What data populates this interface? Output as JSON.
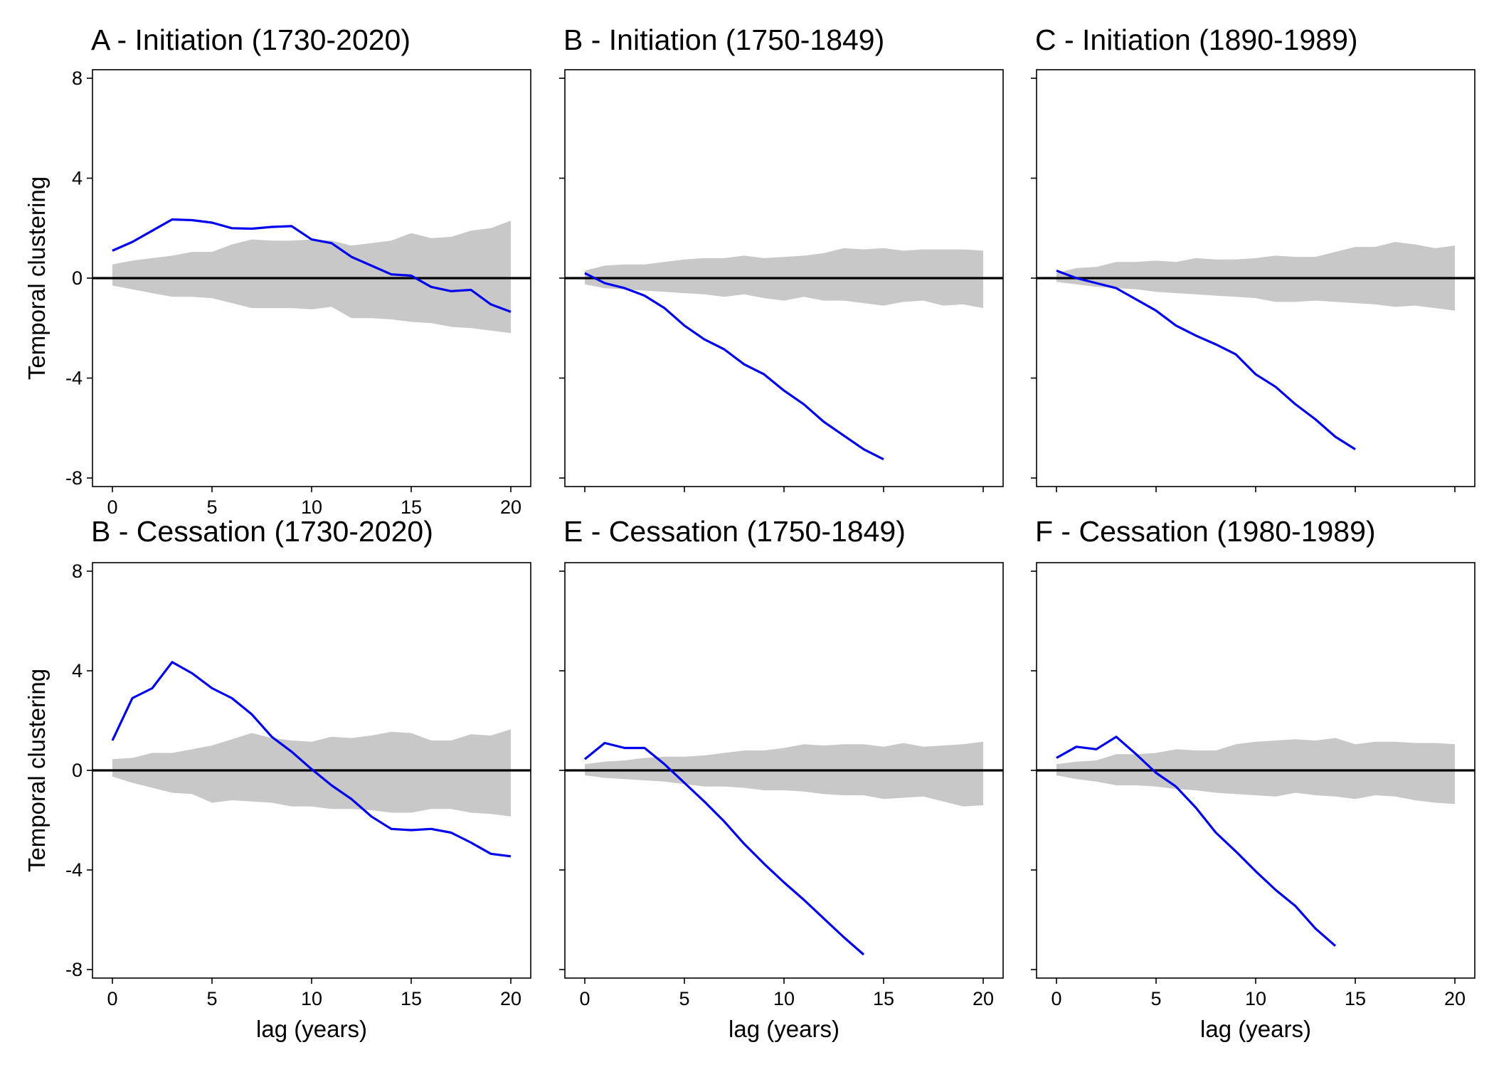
{
  "colors": {
    "line": "#0000ee",
    "band": "#c8c8c8",
    "zero_line": "#000000",
    "frame": "#000000"
  },
  "chart_data": [
    {
      "type": "area",
      "title": "A - Initiation (1730-2020)",
      "xlabel": "",
      "ylabel": "Temporal clustering",
      "xlim": [
        0,
        20
      ],
      "ylim": [
        -8,
        8
      ],
      "xticks": [
        "0",
        "5",
        "10",
        "15",
        "20"
      ],
      "yticks": [
        "-8",
        "-4",
        "0",
        "4",
        "8"
      ],
      "x": [
        0,
        1,
        2,
        3,
        4,
        5,
        6,
        7,
        8,
        9,
        10,
        11,
        12,
        13,
        14,
        15,
        16,
        17,
        18,
        19,
        20
      ],
      "band_upper": [
        0.55,
        0.7,
        0.8,
        0.9,
        1.05,
        1.05,
        1.35,
        1.55,
        1.5,
        1.5,
        1.55,
        1.5,
        1.3,
        1.4,
        1.5,
        1.8,
        1.6,
        1.65,
        1.9,
        2.0,
        2.3
      ],
      "band_lower": [
        -0.3,
        -0.45,
        -0.6,
        -0.75,
        -0.75,
        -0.8,
        -1.0,
        -1.2,
        -1.2,
        -1.2,
        -1.25,
        -1.15,
        -1.6,
        -1.6,
        -1.65,
        -1.75,
        -1.8,
        -1.95,
        -2.0,
        -2.1,
        -2.2
      ],
      "line": [
        1.1,
        1.45,
        1.9,
        2.35,
        2.32,
        2.22,
        2.0,
        1.98,
        2.05,
        2.08,
        1.55,
        1.4,
        0.85,
        0.5,
        0.15,
        0.1,
        -0.35,
        -0.52,
        -0.47,
        -1.05,
        -1.35
      ]
    },
    {
      "type": "area",
      "title": "B - Initiation (1750-1849)",
      "xlabel": "",
      "ylabel": "",
      "xlim": [
        0,
        20
      ],
      "ylim": [
        -8,
        8
      ],
      "xticks": [],
      "yticks": [],
      "x": [
        0,
        1,
        2,
        3,
        4,
        5,
        6,
        7,
        8,
        9,
        10,
        11,
        12,
        13,
        14,
        15,
        16,
        17,
        18,
        19,
        20
      ],
      "band_upper": [
        0.3,
        0.5,
        0.55,
        0.55,
        0.65,
        0.75,
        0.8,
        0.8,
        0.9,
        0.8,
        0.85,
        0.9,
        1.0,
        1.2,
        1.15,
        1.2,
        1.1,
        1.15,
        1.15,
        1.15,
        1.1
      ],
      "band_lower": [
        -0.25,
        -0.4,
        -0.45,
        -0.5,
        -0.55,
        -0.6,
        -0.65,
        -0.75,
        -0.65,
        -0.8,
        -0.9,
        -0.75,
        -0.9,
        -0.9,
        -1.0,
        -1.1,
        -0.95,
        -0.9,
        -1.1,
        -1.05,
        -1.2
      ],
      "line": [
        0.2,
        -0.2,
        -0.4,
        -0.7,
        -1.2,
        -1.9,
        -2.45,
        -2.85,
        -3.45,
        -3.85,
        -4.5,
        -5.05,
        -5.75,
        -6.3,
        -6.85,
        -7.25,
        null,
        null,
        null,
        null,
        null
      ]
    },
    {
      "type": "area",
      "title": "C - Initiation (1890-1989)",
      "xlabel": "",
      "ylabel": "",
      "xlim": [
        0,
        20
      ],
      "ylim": [
        -8,
        8
      ],
      "xticks": [],
      "yticks": [],
      "x": [
        0,
        1,
        2,
        3,
        4,
        5,
        6,
        7,
        8,
        9,
        10,
        11,
        12,
        13,
        14,
        15,
        16,
        17,
        18,
        19,
        20
      ],
      "band_upper": [
        0.2,
        0.4,
        0.45,
        0.65,
        0.65,
        0.7,
        0.65,
        0.8,
        0.75,
        0.75,
        0.8,
        0.9,
        0.85,
        0.85,
        1.05,
        1.25,
        1.25,
        1.45,
        1.35,
        1.2,
        1.3
      ],
      "band_lower": [
        -0.15,
        -0.25,
        -0.35,
        -0.4,
        -0.45,
        -0.55,
        -0.6,
        -0.65,
        -0.7,
        -0.75,
        -0.8,
        -0.95,
        -0.95,
        -0.9,
        -0.95,
        -1.0,
        -1.05,
        -1.15,
        -1.1,
        -1.2,
        -1.3
      ],
      "line": [
        0.3,
        0.0,
        -0.2,
        -0.4,
        -0.85,
        -1.3,
        -1.9,
        -2.3,
        -2.65,
        -3.05,
        -3.85,
        -4.35,
        -5.05,
        -5.65,
        -6.35,
        -6.85,
        null,
        null,
        null,
        null,
        null
      ]
    },
    {
      "type": "area",
      "title": "B - Cessation (1730-2020)",
      "xlabel": "lag (years)",
      "ylabel": "Temporal clustering",
      "xlim": [
        0,
        20
      ],
      "ylim": [
        -8,
        8
      ],
      "xticks": [
        "0",
        "5",
        "10",
        "15",
        "20"
      ],
      "yticks": [
        "-8",
        "-4",
        "0",
        "4",
        "8"
      ],
      "x": [
        0,
        1,
        2,
        3,
        4,
        5,
        6,
        7,
        8,
        9,
        10,
        11,
        12,
        13,
        14,
        15,
        16,
        17,
        18,
        19,
        20
      ],
      "band_upper": [
        0.45,
        0.5,
        0.7,
        0.7,
        0.85,
        1.0,
        1.25,
        1.5,
        1.3,
        1.2,
        1.15,
        1.35,
        1.3,
        1.4,
        1.55,
        1.5,
        1.2,
        1.2,
        1.45,
        1.4,
        1.65
      ],
      "band_lower": [
        -0.25,
        -0.5,
        -0.7,
        -0.9,
        -0.95,
        -1.3,
        -1.2,
        -1.25,
        -1.3,
        -1.45,
        -1.45,
        -1.55,
        -1.55,
        -1.6,
        -1.7,
        -1.7,
        -1.55,
        -1.55,
        -1.7,
        -1.75,
        -1.85
      ],
      "line": [
        1.2,
        2.9,
        3.3,
        4.35,
        3.9,
        3.3,
        2.9,
        2.25,
        1.35,
        0.75,
        0.05,
        -0.6,
        -1.15,
        -1.85,
        -2.35,
        -2.4,
        -2.35,
        -2.5,
        -2.9,
        -3.35,
        -3.45
      ]
    },
    {
      "type": "area",
      "title": "E - Cessation (1750-1849)",
      "xlabel": "lag (years)",
      "ylabel": "",
      "xlim": [
        0,
        20
      ],
      "ylim": [
        -8,
        8
      ],
      "xticks": [
        "0",
        "5",
        "10",
        "15",
        "20"
      ],
      "yticks": [],
      "x": [
        0,
        1,
        2,
        3,
        4,
        5,
        6,
        7,
        8,
        9,
        10,
        11,
        12,
        13,
        14,
        15,
        16,
        17,
        18,
        19,
        20
      ],
      "band_upper": [
        0.25,
        0.35,
        0.4,
        0.5,
        0.55,
        0.55,
        0.6,
        0.7,
        0.8,
        0.8,
        0.9,
        1.05,
        1.0,
        1.05,
        1.05,
        0.95,
        1.1,
        0.95,
        1.0,
        1.05,
        1.15
      ],
      "band_lower": [
        -0.2,
        -0.3,
        -0.35,
        -0.4,
        -0.45,
        -0.55,
        -0.65,
        -0.65,
        -0.7,
        -0.8,
        -0.8,
        -0.85,
        -0.95,
        -1.0,
        -1.0,
        -1.15,
        -1.1,
        -1.05,
        -1.25,
        -1.45,
        -1.4
      ],
      "line": [
        0.45,
        1.1,
        0.9,
        0.9,
        0.25,
        -0.5,
        -1.25,
        -2.05,
        -2.95,
        -3.75,
        -4.5,
        -5.2,
        -5.95,
        -6.7,
        -7.4,
        null,
        null,
        null,
        null,
        null,
        null
      ]
    },
    {
      "type": "area",
      "title": "F - Cessation (1980-1989)",
      "xlabel": "lag (years)",
      "ylabel": "",
      "xlim": [
        0,
        20
      ],
      "ylim": [
        -8,
        8
      ],
      "xticks": [
        "0",
        "5",
        "10",
        "15",
        "20"
      ],
      "yticks": [],
      "x": [
        0,
        1,
        2,
        3,
        4,
        5,
        6,
        7,
        8,
        9,
        10,
        11,
        12,
        13,
        14,
        15,
        16,
        17,
        18,
        19,
        20
      ],
      "band_upper": [
        0.25,
        0.35,
        0.4,
        0.65,
        0.65,
        0.7,
        0.85,
        0.8,
        0.8,
        1.05,
        1.15,
        1.2,
        1.25,
        1.2,
        1.3,
        1.05,
        1.15,
        1.15,
        1.1,
        1.1,
        1.05
      ],
      "band_lower": [
        -0.2,
        -0.35,
        -0.45,
        -0.6,
        -0.6,
        -0.65,
        -0.75,
        -0.8,
        -0.9,
        -0.95,
        -1.0,
        -1.05,
        -0.9,
        -1.0,
        -1.05,
        -1.15,
        -1.0,
        -1.05,
        -1.2,
        -1.3,
        -1.35
      ],
      "line": [
        0.5,
        0.95,
        0.85,
        1.35,
        0.65,
        -0.1,
        -0.65,
        -1.5,
        -2.5,
        -3.25,
        -4.05,
        -4.8,
        -5.45,
        -6.35,
        -7.05,
        null,
        null,
        null,
        null,
        null,
        null
      ]
    }
  ]
}
